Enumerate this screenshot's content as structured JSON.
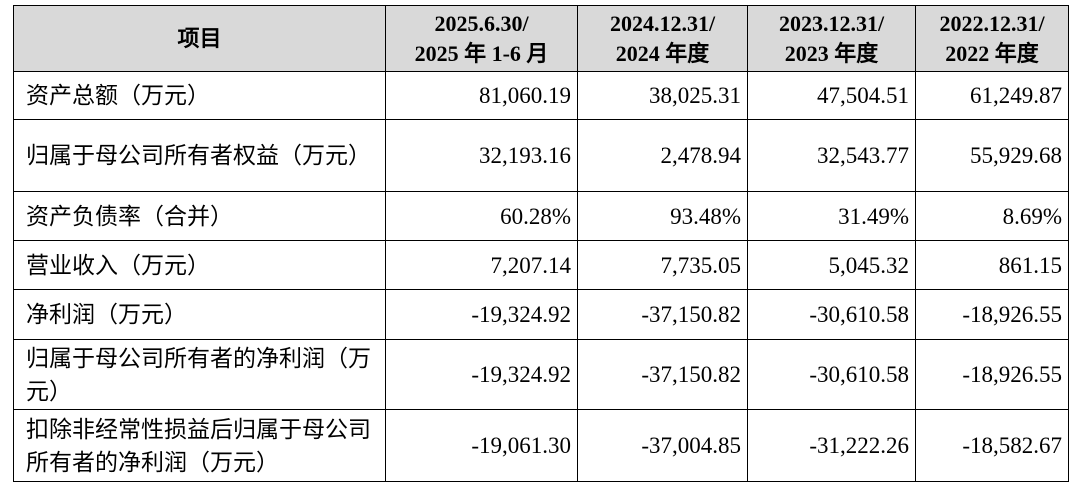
{
  "table": {
    "header": [
      [
        "项目"
      ],
      [
        "2025.6.30/",
        "2025 年 1-6 月"
      ],
      [
        "2024.12.31/",
        "2024 年度"
      ],
      [
        "2023.12.31/",
        "2023 年度"
      ],
      [
        "2022.12.31/",
        "2022 年度"
      ]
    ],
    "rows": [
      [
        "资产总额（万元）",
        "81,060.19",
        "38,025.31",
        "47,504.51",
        "61,249.87"
      ],
      [
        "归属于母公司所有者权益（万元）",
        "32,193.16",
        "2,478.94",
        "32,543.77",
        "55,929.68"
      ],
      [
        "资产负债率（合并）",
        "60.28%",
        "93.48%",
        "31.49%",
        "8.69%"
      ],
      [
        "营业收入（万元）",
        "7,207.14",
        "7,735.05",
        "5,045.32",
        "861.15"
      ],
      [
        "净利润（万元）",
        "-19,324.92",
        "-37,150.82",
        "-30,610.58",
        "-18,926.55"
      ],
      [
        "归属于母公司所有者的净利润（万元）",
        "-19,324.92",
        "-37,150.82",
        "-30,610.58",
        "-18,926.55"
      ],
      [
        "扣除非经常性损益后归属于母公司所有者的净利润（万元）",
        "-19,061.30",
        "-37,004.85",
        "-31,222.26",
        "-18,582.67"
      ]
    ]
  }
}
